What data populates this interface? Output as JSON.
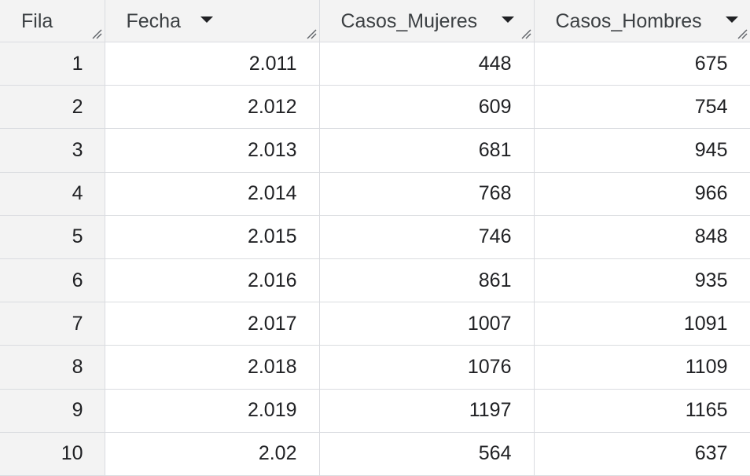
{
  "table": {
    "row_header": "Fila",
    "columns": [
      {
        "label": "Fecha"
      },
      {
        "label": "Casos_Mujeres"
      },
      {
        "label": "Casos_Hombres"
      }
    ],
    "rows": [
      {
        "fila": "1",
        "fecha": "2.011",
        "mujeres": "448",
        "hombres": "675"
      },
      {
        "fila": "2",
        "fecha": "2.012",
        "mujeres": "609",
        "hombres": "754"
      },
      {
        "fila": "3",
        "fecha": "2.013",
        "mujeres": "681",
        "hombres": "945"
      },
      {
        "fila": "4",
        "fecha": "2.014",
        "mujeres": "768",
        "hombres": "966"
      },
      {
        "fila": "5",
        "fecha": "2.015",
        "mujeres": "746",
        "hombres": "848"
      },
      {
        "fila": "6",
        "fecha": "2.016",
        "mujeres": "861",
        "hombres": "935"
      },
      {
        "fila": "7",
        "fecha": "2.017",
        "mujeres": "1007",
        "hombres": "1091"
      },
      {
        "fila": "8",
        "fecha": "2.018",
        "mujeres": "1076",
        "hombres": "1109"
      },
      {
        "fila": "9",
        "fecha": "2.019",
        "mujeres": "1197",
        "hombres": "1165"
      },
      {
        "fila": "10",
        "fecha": "2.02",
        "mujeres": "564",
        "hombres": "637"
      }
    ]
  },
  "colors": {
    "header_bg": "#f3f3f3",
    "grid_line": "#dadce0",
    "text": "#202124"
  },
  "icons": {
    "sort": "caret-down-icon",
    "resize": "resize-handle-icon"
  }
}
